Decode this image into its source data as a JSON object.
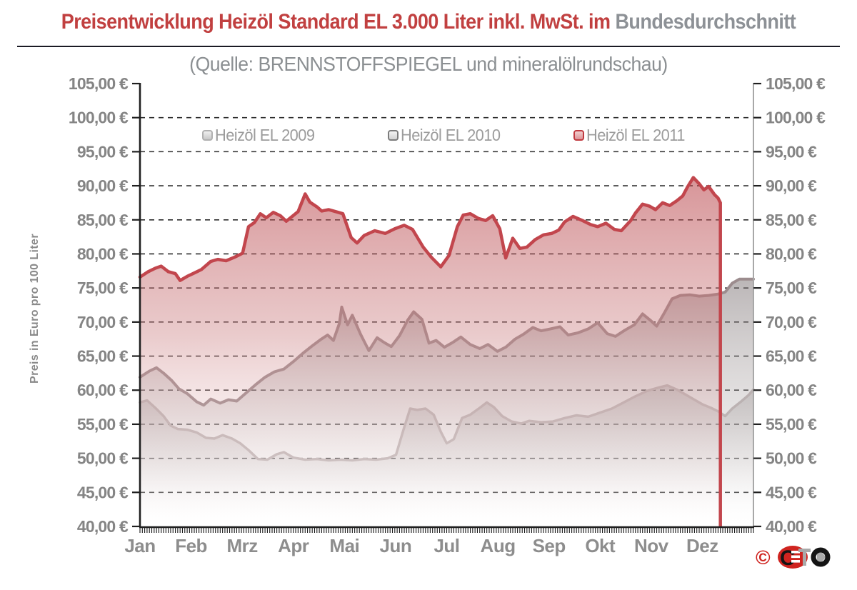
{
  "title": {
    "red_part": "Preisentwicklung Heizöl Standard EL 3.000 Liter inkl. MwSt. im",
    "gray_part": "Bundesdurchschnitt"
  },
  "subtitle": "(Quelle: BRENNSTOFFSPIEGEL und mineralölrundschau)",
  "y_axis_title": "Preis in Euro pro 100 Liter",
  "legend": {
    "items": [
      {
        "label": "Heizöl EL 2009",
        "marker_border": "#b0b0b0",
        "marker_fill_top": "#efefef",
        "marker_fill_bottom": "#c8c8c8"
      },
      {
        "label": "Heizöl EL 2010",
        "marker_border": "#7c7c7c",
        "marker_fill_top": "#f4f4f4",
        "marker_fill_bottom": "#d2d2d2"
      },
      {
        "label": "Heizöl EL 2011",
        "marker_border": "#c0393f",
        "marker_fill_top": "#f1cfcf",
        "marker_fill_bottom": "#dd9397"
      }
    ]
  },
  "logo": {
    "copyright": "©",
    "text": "CETO",
    "red": "#cf2420",
    "black": "#141414",
    "gray": "#a9a9a9"
  },
  "colors": {
    "title_red": "#c14040",
    "title_gray": "#8d9196",
    "subtitle_gray": "#8b8f92",
    "rule": "#1a1a24",
    "axis_dark": "#1f1f1f",
    "axis_right": "#a8a8a8",
    "gridline": "#2e2e2e",
    "ytick_text": "#858585",
    "xtick_text": "#8d8d8d",
    "legend_text": "#9c9c9c",
    "yaxis_title_text": "#8a8a8a"
  },
  "chart_data": {
    "type": "area",
    "title": "Preisentwicklung Heizöl Standard EL 3.000 Liter inkl. MwSt. im Bundesdurchschnitt",
    "source": "BRENNSTOFFSPIEGEL und mineralölrundschau",
    "xlabel": "",
    "ylabel": "Preis in Euro pro 100 Liter",
    "categories": [
      "Jan",
      "Feb",
      "Mrz",
      "Apr",
      "Mai",
      "Jun",
      "Jul",
      "Aug",
      "Sep",
      "Okt",
      "Nov",
      "Dez"
    ],
    "x_unit": "week_of_year",
    "x_weeks": 52,
    "ylim": [
      40,
      105
    ],
    "y_tick_step": 5,
    "y_tick_labels": [
      "105,00 €",
      "100,00 €",
      "95,00 €",
      "90,00 €",
      "85,00 €",
      "80,00 €",
      "75,00 €",
      "70,00 €",
      "65,00 €",
      "60,00 €",
      "55,00 €",
      "50,00 €",
      "45,00 €",
      "40,00 €"
    ],
    "grid": "dashed-horizontal",
    "legend_position": "top-inside",
    "minor_tick_count": 260,
    "series": [
      {
        "name": "Heizöl EL 2009",
        "color": "#c3b9b9",
        "line_width": 3.5,
        "end_drop": false,
        "fill_stops": [
          [
            "0%",
            "rgba(150,142,142,0.42)"
          ],
          [
            "55%",
            "rgba(195,188,188,0.28)"
          ],
          [
            "100%",
            "rgba(255,255,255,0.02)"
          ]
        ],
        "points": [
          [
            0,
            58.2
          ],
          [
            0.6,
            58.5
          ],
          [
            1.3,
            57.4
          ],
          [
            2,
            56.2
          ],
          [
            2.6,
            54.8
          ],
          [
            3.2,
            54.3
          ],
          [
            4,
            54.2
          ],
          [
            4.8,
            53.8
          ],
          [
            5.6,
            53.0
          ],
          [
            6.3,
            52.9
          ],
          [
            7,
            53.4
          ],
          [
            7.8,
            52.9
          ],
          [
            8.5,
            52.2
          ],
          [
            9.2,
            51.2
          ],
          [
            10,
            49.9
          ],
          [
            10.8,
            49.8
          ],
          [
            11.6,
            50.6
          ],
          [
            12.2,
            50.9
          ],
          [
            13,
            50.1
          ],
          [
            14,
            49.8
          ],
          [
            15,
            49.9
          ],
          [
            16,
            49.7
          ],
          [
            17,
            49.8
          ],
          [
            18,
            49.7
          ],
          [
            19,
            49.9
          ],
          [
            20,
            49.8
          ],
          [
            21,
            50.0
          ],
          [
            21.7,
            50.5
          ],
          [
            22.3,
            54.0
          ],
          [
            22.9,
            57.3
          ],
          [
            23.5,
            57.1
          ],
          [
            24.2,
            57.3
          ],
          [
            24.9,
            56.4
          ],
          [
            25.5,
            53.9
          ],
          [
            26,
            52.2
          ],
          [
            26.6,
            52.8
          ],
          [
            27.3,
            55.9
          ],
          [
            28,
            56.4
          ],
          [
            28.8,
            57.4
          ],
          [
            29.4,
            58.2
          ],
          [
            30,
            57.5
          ],
          [
            30.7,
            56.2
          ],
          [
            31.5,
            55.4
          ],
          [
            32.3,
            55.1
          ],
          [
            33,
            55.5
          ],
          [
            34,
            55.3
          ],
          [
            35,
            55.4
          ],
          [
            36,
            55.9
          ],
          [
            37,
            56.3
          ],
          [
            38,
            56.1
          ],
          [
            39,
            56.7
          ],
          [
            40,
            57.3
          ],
          [
            41,
            58.2
          ],
          [
            42,
            59.1
          ],
          [
            43,
            59.9
          ],
          [
            44,
            60.4
          ],
          [
            44.7,
            60.7
          ],
          [
            45.5,
            60.1
          ],
          [
            46.3,
            59.3
          ],
          [
            47,
            58.6
          ],
          [
            47.7,
            57.9
          ],
          [
            48.4,
            57.4
          ],
          [
            49,
            56.9
          ],
          [
            49.6,
            56.2
          ],
          [
            50.2,
            57.3
          ],
          [
            51,
            58.4
          ],
          [
            51.6,
            59.3
          ],
          [
            52,
            60.1
          ]
        ]
      },
      {
        "name": "Heizöl EL 2010",
        "color": "#9c8c8e",
        "line_width": 4,
        "end_drop": false,
        "fill_stops": [
          [
            "0%",
            "rgba(120,110,112,0.5)"
          ],
          [
            "55%",
            "rgba(175,168,168,0.3)"
          ],
          [
            "100%",
            "rgba(255,255,255,0.02)"
          ]
        ],
        "points": [
          [
            0,
            61.9
          ],
          [
            0.8,
            62.8
          ],
          [
            1.4,
            63.3
          ],
          [
            2,
            62.5
          ],
          [
            2.7,
            61.4
          ],
          [
            3.3,
            60.2
          ],
          [
            4,
            59.5
          ],
          [
            4.8,
            58.3
          ],
          [
            5.4,
            57.8
          ],
          [
            6,
            58.7
          ],
          [
            6.8,
            58.1
          ],
          [
            7.5,
            58.6
          ],
          [
            8.2,
            58.4
          ],
          [
            9,
            59.6
          ],
          [
            9.8,
            60.8
          ],
          [
            10.6,
            61.9
          ],
          [
            11.4,
            62.7
          ],
          [
            12.2,
            63.1
          ],
          [
            13,
            64.2
          ],
          [
            13.8,
            65.4
          ],
          [
            14.6,
            66.5
          ],
          [
            15.3,
            67.4
          ],
          [
            15.9,
            68.1
          ],
          [
            16.4,
            67.3
          ],
          [
            16.9,
            69.8
          ],
          [
            17.1,
            72.2
          ],
          [
            17.6,
            69.6
          ],
          [
            18,
            71.0
          ],
          [
            18.7,
            68.2
          ],
          [
            19.4,
            65.8
          ],
          [
            20.1,
            67.7
          ],
          [
            20.7,
            67.0
          ],
          [
            21.3,
            66.4
          ],
          [
            22,
            68.0
          ],
          [
            22.7,
            70.3
          ],
          [
            23.2,
            71.5
          ],
          [
            23.9,
            70.4
          ],
          [
            24.5,
            66.9
          ],
          [
            25.1,
            67.3
          ],
          [
            25.8,
            66.3
          ],
          [
            26.5,
            67.0
          ],
          [
            27.2,
            67.8
          ],
          [
            28,
            66.7
          ],
          [
            28.8,
            66.1
          ],
          [
            29.5,
            66.7
          ],
          [
            30.3,
            65.7
          ],
          [
            31,
            66.3
          ],
          [
            31.8,
            67.5
          ],
          [
            32.5,
            68.2
          ],
          [
            33.3,
            69.2
          ],
          [
            34,
            68.7
          ],
          [
            34.8,
            69.0
          ],
          [
            35.6,
            69.3
          ],
          [
            36.3,
            68.1
          ],
          [
            37.1,
            68.4
          ],
          [
            38,
            69.0
          ],
          [
            38.8,
            69.9
          ],
          [
            39.6,
            68.3
          ],
          [
            40.3,
            67.9
          ],
          [
            41.1,
            68.8
          ],
          [
            41.9,
            69.6
          ],
          [
            42.6,
            71.2
          ],
          [
            43.3,
            70.2
          ],
          [
            43.8,
            69.4
          ],
          [
            44.5,
            71.5
          ],
          [
            45.1,
            73.4
          ],
          [
            45.8,
            73.9
          ],
          [
            46.6,
            74.0
          ],
          [
            47.4,
            73.8
          ],
          [
            48.2,
            73.9
          ],
          [
            49,
            74.1
          ],
          [
            49.6,
            74.4
          ],
          [
            50.2,
            75.7
          ],
          [
            50.8,
            76.3
          ],
          [
            51.5,
            76.3
          ],
          [
            52,
            76.3
          ]
        ]
      },
      {
        "name": "Heizöl EL 2011",
        "color": "#c2464d",
        "line_width": 4.5,
        "end_drop": true,
        "fill_stops": [
          [
            "0%",
            "rgba(183,62,68,0.55)"
          ],
          [
            "45%",
            "rgba(204,130,132,0.42)"
          ],
          [
            "100%",
            "rgba(255,250,250,0.04)"
          ]
        ],
        "points": [
          [
            0,
            76.6
          ],
          [
            0.7,
            77.4
          ],
          [
            1.3,
            77.9
          ],
          [
            1.8,
            78.2
          ],
          [
            2.4,
            77.4
          ],
          [
            3,
            77.1
          ],
          [
            3.4,
            76.1
          ],
          [
            4,
            76.7
          ],
          [
            4.6,
            77.2
          ],
          [
            5.2,
            77.7
          ],
          [
            6,
            78.9
          ],
          [
            6.6,
            79.2
          ],
          [
            7.3,
            79.0
          ],
          [
            8,
            79.5
          ],
          [
            8.7,
            80.1
          ],
          [
            9.2,
            84.0
          ],
          [
            9.7,
            84.6
          ],
          [
            10.2,
            85.9
          ],
          [
            10.7,
            85.3
          ],
          [
            11.3,
            86.1
          ],
          [
            11.9,
            85.6
          ],
          [
            12.4,
            84.8
          ],
          [
            12.9,
            85.5
          ],
          [
            13.4,
            86.2
          ],
          [
            14,
            88.8
          ],
          [
            14.4,
            87.6
          ],
          [
            15,
            86.9
          ],
          [
            15.4,
            86.3
          ],
          [
            16,
            86.5
          ],
          [
            16.6,
            86.2
          ],
          [
            17.2,
            85.9
          ],
          [
            17.9,
            82.4
          ],
          [
            18.4,
            81.6
          ],
          [
            19,
            82.7
          ],
          [
            19.9,
            83.4
          ],
          [
            20.8,
            83.0
          ],
          [
            21.6,
            83.7
          ],
          [
            22.4,
            84.2
          ],
          [
            23.1,
            83.6
          ],
          [
            24,
            81.0
          ],
          [
            24.7,
            79.5
          ],
          [
            25.5,
            78.1
          ],
          [
            26.2,
            79.8
          ],
          [
            26.9,
            84.0
          ],
          [
            27.4,
            85.7
          ],
          [
            28,
            85.9
          ],
          [
            28.7,
            85.2
          ],
          [
            29.3,
            84.9
          ],
          [
            29.9,
            85.6
          ],
          [
            30.5,
            83.7
          ],
          [
            31,
            79.4
          ],
          [
            31.6,
            82.3
          ],
          [
            32.2,
            80.8
          ],
          [
            32.8,
            81.0
          ],
          [
            33.5,
            82.1
          ],
          [
            34.2,
            82.8
          ],
          [
            34.9,
            83.0
          ],
          [
            35.5,
            83.5
          ],
          [
            36,
            84.7
          ],
          [
            36.7,
            85.5
          ],
          [
            37.5,
            84.9
          ],
          [
            38.2,
            84.3
          ],
          [
            38.8,
            84.0
          ],
          [
            39.5,
            84.5
          ],
          [
            40.2,
            83.6
          ],
          [
            40.8,
            83.4
          ],
          [
            41.6,
            84.9
          ],
          [
            42,
            86.0
          ],
          [
            42.6,
            87.3
          ],
          [
            43.2,
            87.0
          ],
          [
            43.7,
            86.5
          ],
          [
            44.3,
            87.5
          ],
          [
            44.9,
            87.1
          ],
          [
            45.5,
            87.8
          ],
          [
            46,
            88.5
          ],
          [
            46.4,
            89.8
          ],
          [
            46.9,
            91.2
          ],
          [
            47.4,
            90.3
          ],
          [
            47.8,
            89.4
          ],
          [
            48.2,
            89.9
          ],
          [
            48.7,
            88.7
          ],
          [
            49,
            88.2
          ],
          [
            49.2,
            87.5
          ]
        ]
      }
    ]
  }
}
